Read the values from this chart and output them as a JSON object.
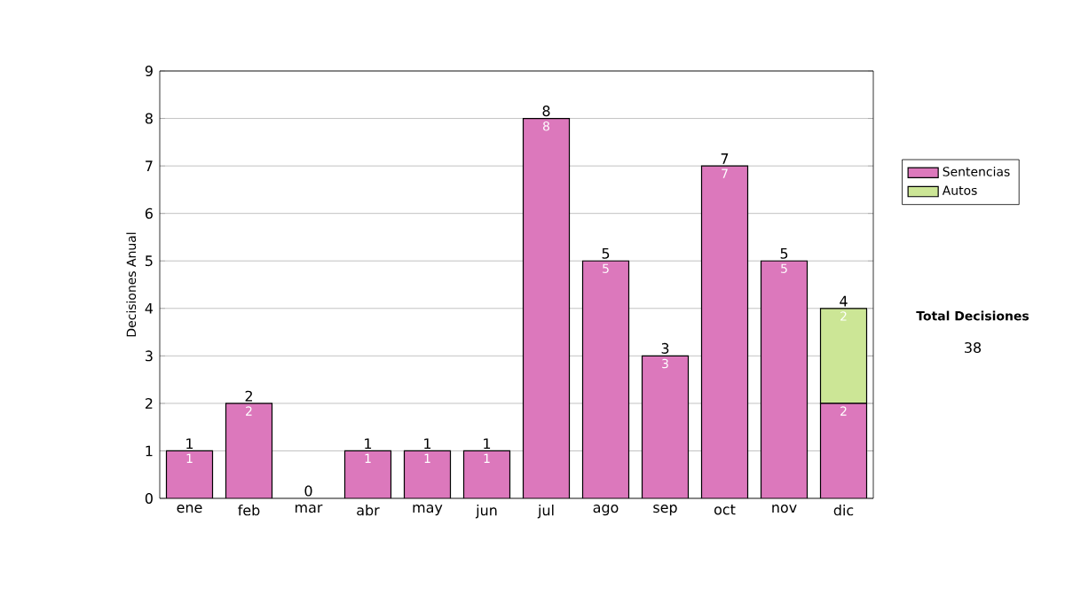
{
  "chart_data": {
    "type": "bar",
    "stacked": true,
    "ylabel": "Decisiones Anual",
    "categories": [
      "ene",
      "feb",
      "mar",
      "abr",
      "may",
      "jun",
      "jul",
      "ago",
      "sep",
      "oct",
      "nov",
      "dic"
    ],
    "series": [
      {
        "name": "Sentencias",
        "color": "#dc78bc",
        "values": [
          1,
          2,
          0,
          1,
          1,
          1,
          8,
          5,
          3,
          7,
          5,
          2
        ],
        "value_labels": [
          "1",
          "2",
          null,
          "1",
          "1",
          "1",
          "8",
          "5",
          "3",
          "7",
          "5",
          "2"
        ]
      },
      {
        "name": "Autos",
        "color": "#cce696",
        "values": [
          0,
          0,
          0,
          0,
          0,
          0,
          0,
          0,
          0,
          0,
          0,
          2
        ],
        "value_labels": [
          null,
          null,
          null,
          null,
          null,
          null,
          null,
          null,
          null,
          null,
          null,
          "2"
        ]
      }
    ],
    "totals": [
      "1",
      "2",
      "0",
      "1",
      "1",
      "1",
      "8",
      "5",
      "3",
      "7",
      "5",
      "4"
    ],
    "ylim": [
      0,
      9
    ],
    "yticks": [
      0,
      1,
      2,
      3,
      4,
      5,
      6,
      7,
      8,
      9
    ],
    "grid": "y",
    "legend": "right",
    "annotations": [
      "Total Decisiones",
      "38"
    ]
  }
}
